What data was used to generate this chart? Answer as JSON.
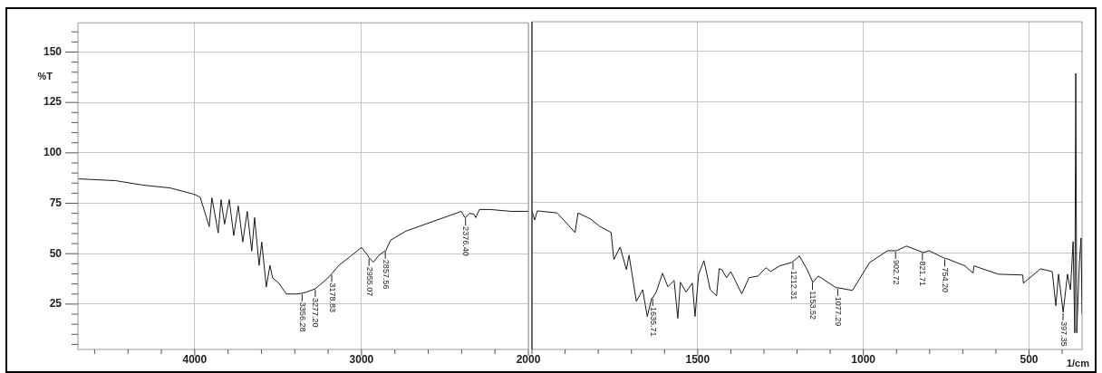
{
  "chart_data": [
    {
      "type": "line",
      "ylabel": "%T",
      "x": [
        4696,
        4473,
        4310,
        4147,
        4005,
        3967,
        3913,
        3897,
        3859,
        3842,
        3821,
        3793,
        3766,
        3739,
        3712,
        3685,
        3658,
        3641,
        3614,
        3598,
        3571,
        3549,
        3533,
        3495,
        3451,
        3386,
        3356,
        3332,
        3277,
        3207,
        3179,
        3136,
        3060,
        3000,
        2962,
        2955,
        2929,
        2897,
        2858,
        2853,
        2826,
        2734,
        2554,
        2402,
        2380,
        2376,
        2353,
        2326,
        2315,
        2293,
        2228,
        2103,
        2011,
        2000
      ],
      "series": [
        {
          "color": "#1a1a1a",
          "values": [
            87.1,
            86.2,
            84,
            82.6,
            79.5,
            78,
            63.4,
            77.7,
            60.3,
            76.8,
            64.7,
            76.8,
            59,
            73.7,
            55.8,
            71,
            51.3,
            67.9,
            44.2,
            55.8,
            33.5,
            44.2,
            38,
            35.3,
            30,
            30,
            30.4,
            30.9,
            32.6,
            37.5,
            40,
            44.2,
            49.1,
            53.1,
            49.1,
            48,
            45.8,
            49.1,
            51.5,
            51.8,
            56.7,
            61.2,
            66.5,
            71,
            67.9,
            68,
            70,
            69.6,
            67.9,
            71.9,
            71.9,
            71,
            71,
            71
          ]
        }
      ],
      "xlim": [
        4700,
        2000
      ],
      "xticks": [
        {
          "value": 4600,
          "label": null
        },
        {
          "value": 4400,
          "label": null
        },
        {
          "value": 4200,
          "label": null
        },
        4000,
        {
          "value": 3800,
          "label": null
        },
        {
          "value": 3600,
          "label": null
        },
        {
          "value": 3400,
          "label": null
        },
        {
          "value": 3200,
          "label": null
        },
        3000,
        {
          "value": 2800,
          "label": null
        },
        {
          "value": 2600,
          "label": null
        },
        {
          "value": 2400,
          "label": null
        },
        {
          "value": 2200,
          "label": null
        },
        2000
      ],
      "ylim": [
        2.5,
        164.5
      ],
      "yticks": [
        {
          "value": 5,
          "label": null
        },
        {
          "value": 10,
          "label": null
        },
        {
          "value": 15,
          "label": null
        },
        {
          "value": 20,
          "label": null
        },
        25,
        {
          "value": 30,
          "label": null
        },
        {
          "value": 35,
          "label": null
        },
        {
          "value": 40,
          "label": null
        },
        {
          "value": 45,
          "label": null
        },
        50,
        {
          "value": 55,
          "label": null
        },
        {
          "value": 60,
          "label": null
        },
        {
          "value": 65,
          "label": null
        },
        {
          "value": 70,
          "label": null
        },
        75,
        {
          "value": 80,
          "label": null
        },
        {
          "value": 85,
          "label": null
        },
        {
          "value": 90,
          "label": null
        },
        {
          "value": 95,
          "label": null
        },
        100,
        {
          "value": 105,
          "label": null
        },
        {
          "value": 110,
          "label": null
        },
        {
          "value": 115,
          "label": null
        },
        {
          "value": 120,
          "label": null
        },
        125,
        {
          "value": 130,
          "label": null
        },
        {
          "value": 135,
          "label": null
        },
        {
          "value": 140,
          "label": null
        },
        {
          "value": 145,
          "label": null
        },
        150,
        {
          "value": 155,
          "label": null
        },
        {
          "value": 160,
          "label": null
        }
      ],
      "grid": true,
      "annotations": [
        {
          "text": "3356.28",
          "x": 3356.28,
          "y": 30.4
        },
        {
          "text": "3277.20",
          "x": 3277.2,
          "y": 32.6
        },
        {
          "text": "3178.83",
          "x": 3178.83,
          "y": 40
        },
        {
          "text": "2955.07",
          "x": 2955.07,
          "y": 48
        },
        {
          "text": "2857.56",
          "x": 2857.56,
          "y": 51.5
        },
        {
          "text": "2376.40",
          "x": 2376.4,
          "y": 68
        }
      ]
    },
    {
      "type": "line",
      "xlabel": "1/cm",
      "tick_labels": "x",
      "x": [
        2000,
        1992,
        1984,
        1924,
        1870,
        1861,
        1823,
        1796,
        1761,
        1753,
        1734,
        1715,
        1707,
        1685,
        1666,
        1652,
        1639,
        1636,
        1625,
        1606,
        1590,
        1571,
        1560,
        1552,
        1535,
        1516,
        1508,
        1497,
        1481,
        1462,
        1443,
        1435,
        1427,
        1413,
        1400,
        1367,
        1345,
        1318,
        1294,
        1280,
        1253,
        1217,
        1212,
        1193,
        1171,
        1153,
        1152,
        1136,
        1082,
        1077,
        1033,
        981,
        927,
        903,
        900,
        870,
        822,
        818,
        802,
        754,
        747,
        693,
        669,
        666,
        593,
        519,
        517,
        465,
        430,
        419,
        411,
        397,
        384,
        375,
        367,
        362,
        359,
        356,
        348,
        343,
        340
      ],
      "series": [
        {
          "color": "#1a1a1a",
          "values": [
            71,
            66.5,
            71,
            70,
            60.3,
            70,
            67,
            63.4,
            60.3,
            46.9,
            53.1,
            42,
            49.1,
            26.3,
            32,
            18.8,
            27.7,
            28,
            30.9,
            40.2,
            33.5,
            36.6,
            17.9,
            35.7,
            30.9,
            35.3,
            18.8,
            39.7,
            46.4,
            32,
            29,
            42.4,
            42,
            38,
            41,
            30,
            38,
            38.8,
            42.9,
            41,
            43.8,
            45.5,
            46,
            48.7,
            42.4,
            36,
            35.7,
            38.8,
            33,
            33,
            31.7,
            45.5,
            51.3,
            51.3,
            51.3,
            53.6,
            50.6,
            50.4,
            51.3,
            47.5,
            47.3,
            43.8,
            40.2,
            43.8,
            39.7,
            39.3,
            35.3,
            42.4,
            41,
            24.1,
            39.7,
            20.9,
            39.7,
            32,
            55.8,
            10.7,
            139,
            10.7,
            45.5,
            57.6,
            20
          ]
        }
      ],
      "xlim": [
        2000,
        340
      ],
      "xticks": [
        {
          "value": 2000,
          "label": null
        },
        {
          "value": 1900,
          "label": null
        },
        {
          "value": 1800,
          "label": null
        },
        {
          "value": 1700,
          "label": null
        },
        {
          "value": 1600,
          "label": null
        },
        1500,
        {
          "value": 1400,
          "label": null
        },
        {
          "value": 1300,
          "label": null
        },
        {
          "value": 1200,
          "label": null
        },
        {
          "value": 1100,
          "label": null
        },
        1000,
        {
          "value": 900,
          "label": null
        },
        {
          "value": 800,
          "label": null
        },
        {
          "value": 700,
          "label": null
        },
        {
          "value": 600,
          "label": null
        },
        500,
        {
          "value": 400,
          "label": null
        }
      ],
      "ylim": [
        2.5,
        164.5
      ],
      "yticks": [
        25,
        50,
        75,
        100,
        125,
        150
      ],
      "grid": true,
      "annotations": [
        {
          "text": "1635.71",
          "x": 1635.71,
          "y": 28
        },
        {
          "text": "1212.31",
          "x": 1212.31,
          "y": 46
        },
        {
          "text": "1153.52",
          "x": 1153.52,
          "y": 36
        },
        {
          "text": "1077.29",
          "x": 1077.29,
          "y": 33
        },
        {
          "text": "902.72",
          "x": 902.72,
          "y": 51.3
        },
        {
          "text": "821.71",
          "x": 821.71,
          "y": 50.6
        },
        {
          "text": "754.20",
          "x": 754.2,
          "y": 47.5
        },
        {
          "text": "397.35",
          "x": 397.35,
          "y": 20.9
        }
      ]
    }
  ]
}
